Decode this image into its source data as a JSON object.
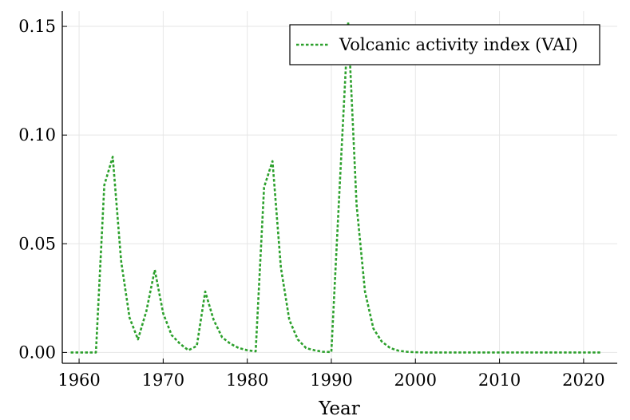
{
  "chart_data": {
    "type": "line",
    "title": "",
    "xlabel": "Year",
    "ylabel": "",
    "xlim": [
      1958,
      2024
    ],
    "ylim": [
      -0.005,
      0.157
    ],
    "xticks": [
      1960,
      1970,
      1980,
      1990,
      2000,
      2010,
      2020
    ],
    "xtick_labels": [
      "1960",
      "1970",
      "1980",
      "1990",
      "2000",
      "2010",
      "2020"
    ],
    "yticks": [
      0.0,
      0.05,
      0.1,
      0.15
    ],
    "ytick_labels": [
      "0.00",
      "0.05",
      "0.10",
      "0.15"
    ],
    "grid": true,
    "legend_position": "top-right",
    "series": [
      {
        "name": "Volcanic activity index (VAI)",
        "color": "#2ca02c",
        "style": "dotted",
        "x": [
          1959,
          1960,
          1961,
          1962,
          1963,
          1964,
          1965,
          1966,
          1967,
          1968,
          1969,
          1970,
          1971,
          1972,
          1973,
          1974,
          1975,
          1976,
          1977,
          1978,
          1979,
          1980,
          1981,
          1982,
          1983,
          1984,
          1985,
          1986,
          1987,
          1988,
          1989,
          1990,
          1991,
          1992,
          1993,
          1994,
          1995,
          1996,
          1997,
          1998,
          1999,
          2000,
          2001,
          2002,
          2003,
          2004,
          2005,
          2006,
          2007,
          2008,
          2009,
          2010,
          2011,
          2012,
          2013,
          2014,
          2015,
          2016,
          2017,
          2018,
          2019,
          2020,
          2021,
          2022
        ],
        "values": [
          0,
          0,
          0,
          0,
          0.077,
          0.09,
          0.042,
          0.016,
          0.006,
          0.019,
          0.038,
          0.018,
          0.008,
          0.004,
          0.001,
          0.003,
          0.028,
          0.015,
          0.007,
          0.004,
          0.002,
          0.001,
          0.0005,
          0.076,
          0.088,
          0.039,
          0.015,
          0.006,
          0.002,
          0.001,
          0.0003,
          0.0002,
          0.077,
          0.152,
          0.068,
          0.028,
          0.011,
          0.005,
          0.002,
          0.0008,
          0.0003,
          0.0001,
          0,
          0,
          0,
          0,
          0,
          0,
          0,
          0,
          0,
          0,
          0,
          0,
          0,
          0,
          0,
          0,
          0,
          0,
          0,
          0,
          0,
          0
        ]
      }
    ]
  }
}
